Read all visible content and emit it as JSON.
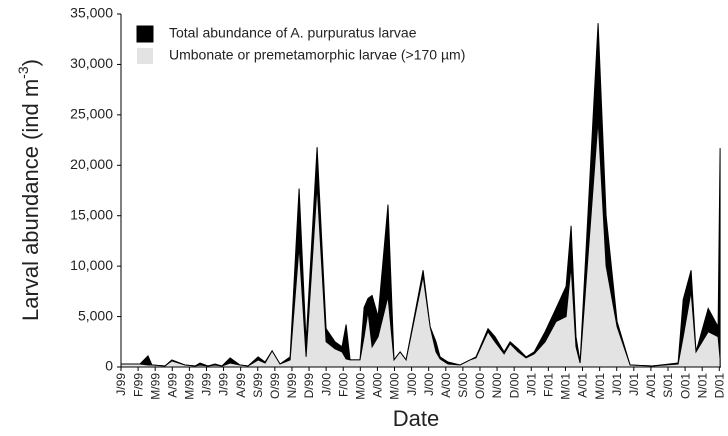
{
  "chart_data": {
    "type": "area",
    "x_label": "Date",
    "y_label": "Larval abundance (ind m",
    "y_label_sup": "-3",
    "y_label_end": ")",
    "x": [
      0,
      1.11,
      1.58,
      1.81,
      2.57,
      2.98,
      3.74,
      4.33,
      4.62,
      5.09,
      5.5,
      5.91,
      6.38,
      6.96,
      7.43,
      8.02,
      8.43,
      8.84,
      9.3,
      9.89,
      10.42,
      10.83,
      11.47,
      12,
      12.52,
      12.93,
      13.17,
      13.4,
      13.98,
      14.22,
      14.45,
      14.69,
      15.04,
      15.62,
      15.97,
      16.33,
      16.68,
      17.67,
      18.08,
      18.43,
      18.67,
      19.13,
      19.84,
      20.42,
      20.77,
      21.47,
      21.88,
      22.41,
      22.76,
      23.23,
      23.7,
      24.17,
      24.81,
      25.45,
      26.04,
      26.33,
      26.62,
      26.86,
      27.91,
      28.38,
      29.02,
      29.78,
      31.07,
      32.59,
      32.89,
      33.35,
      33.64,
      34.35,
      34.93,
      35.05
    ],
    "series": [
      {
        "name": "Total abundance of A. purpuratus larvae",
        "color": "#000000",
        "values": [
          300,
          300,
          1100,
          200,
          100,
          700,
          200,
          100,
          400,
          100,
          300,
          100,
          900,
          200,
          100,
          1000,
          500,
          1600,
          300,
          1000,
          17700,
          2500,
          21800,
          3800,
          2500,
          2000,
          4200,
          700,
          700,
          5900,
          6800,
          7100,
          5000,
          16100,
          700,
          1500,
          700,
          9600,
          4000,
          2500,
          1000,
          500,
          200,
          700,
          1000,
          3800,
          3000,
          1500,
          2500,
          1800,
          1000,
          1500,
          3500,
          5800,
          8000,
          14000,
          3000,
          500,
          34100,
          15000,
          4500,
          200,
          100,
          400,
          6700,
          9600,
          1500,
          5800,
          4000,
          21700
        ]
      },
      {
        "name": "Umbonate or premetamorphic larvae (>170 µm)",
        "color": "#e3e3e3",
        "values": [
          300,
          300,
          200,
          200,
          100,
          600,
          200,
          100,
          200,
          100,
          200,
          100,
          400,
          200,
          100,
          700,
          400,
          1600,
          300,
          700,
          12000,
          1000,
          18000,
          2500,
          1800,
          1500,
          800,
          700,
          700,
          3000,
          5500,
          2000,
          3000,
          7000,
          700,
          1500,
          700,
          9000,
          4000,
          1500,
          800,
          300,
          200,
          700,
          900,
          3500,
          2500,
          1300,
          2300,
          1500,
          900,
          1300,
          2500,
          4500,
          5000,
          10000,
          2000,
          400,
          24500,
          10000,
          4000,
          200,
          100,
          300,
          3000,
          7500,
          1500,
          3500,
          3000,
          800
        ]
      }
    ],
    "xlim": [
      0,
      35.1
    ],
    "xticks": [
      {
        "value": 0,
        "label": "J/99"
      },
      {
        "value": 1,
        "label": "F/99"
      },
      {
        "value": 2,
        "label": "M/99"
      },
      {
        "value": 3,
        "label": "A/99"
      },
      {
        "value": 4,
        "label": "M/99"
      },
      {
        "value": 5,
        "label": "J/99"
      },
      {
        "value": 6,
        "label": "J/99"
      },
      {
        "value": 7,
        "label": "A/99"
      },
      {
        "value": 8,
        "label": "S/99"
      },
      {
        "value": 9,
        "label": "O/99"
      },
      {
        "value": 10,
        "label": "N/99"
      },
      {
        "value": 11,
        "label": "D/99"
      },
      {
        "value": 12,
        "label": "J/00"
      },
      {
        "value": 13,
        "label": "F/00"
      },
      {
        "value": 14,
        "label": "M/00"
      },
      {
        "value": 15,
        "label": "A/00"
      },
      {
        "value": 16,
        "label": "M/00"
      },
      {
        "value": 17,
        "label": "J/00"
      },
      {
        "value": 18,
        "label": "J/00"
      },
      {
        "value": 19,
        "label": "A/00"
      },
      {
        "value": 20,
        "label": "S/00"
      },
      {
        "value": 21,
        "label": "O/00"
      },
      {
        "value": 22,
        "label": "N/00"
      },
      {
        "value": 23,
        "label": "D/00"
      },
      {
        "value": 24,
        "label": "J/01"
      },
      {
        "value": 25,
        "label": "F/01"
      },
      {
        "value": 26,
        "label": "M/01"
      },
      {
        "value": 27,
        "label": "A/01"
      },
      {
        "value": 28,
        "label": "M/01"
      },
      {
        "value": 29,
        "label": "J/01"
      },
      {
        "value": 30,
        "label": "J/01"
      },
      {
        "value": 31,
        "label": "A/01"
      },
      {
        "value": 32,
        "label": "S/01"
      },
      {
        "value": 33,
        "label": "O/01"
      },
      {
        "value": 34,
        "label": "N/01"
      },
      {
        "value": 35,
        "label": "D/01"
      }
    ],
    "ylim": [
      0,
      35000
    ],
    "yticks": [
      0,
      {
        "value": 5000,
        "label": "5,000"
      },
      {
        "value": 10000,
        "label": "10,000"
      },
      {
        "value": 15000,
        "label": "15,000"
      },
      {
        "value": 20000,
        "label": "20,000"
      },
      {
        "value": 25000,
        "label": "25,000"
      },
      {
        "value": 30000,
        "label": "30,000"
      },
      {
        "value": 35000,
        "label": "35,000"
      }
    ],
    "grid": false,
    "legend": "upper left"
  }
}
